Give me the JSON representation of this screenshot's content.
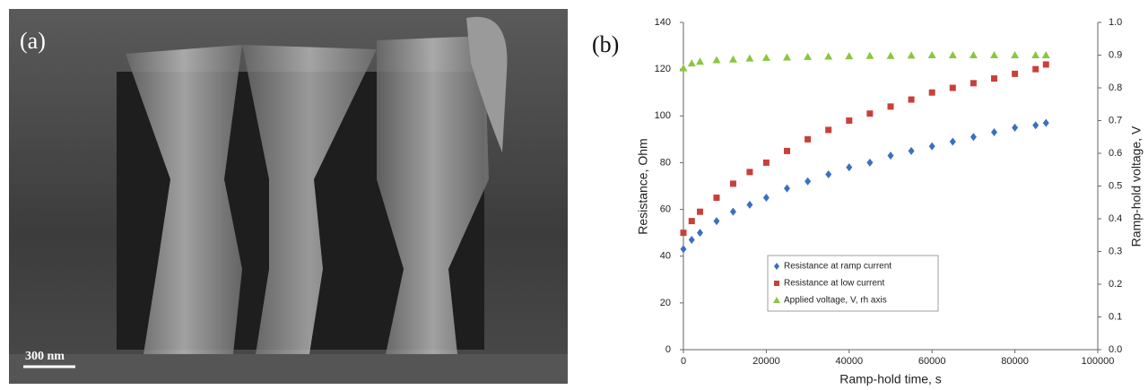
{
  "image": {
    "label": "(a)",
    "scale_bar": "300 nm"
  },
  "chart_data": {
    "type": "scatter",
    "panel_label": "(b)",
    "x_label": "Ramp-hold time, s",
    "y_label": "Resistance, Ohm",
    "y2_label": "Ramp-hold voltage, V",
    "x": [
      0,
      2000,
      4000,
      8000,
      12000,
      16000,
      20000,
      25000,
      30000,
      35000,
      40000,
      45000,
      50000,
      55000,
      60000,
      65000,
      70000,
      75000,
      80000,
      85000,
      87500
    ],
    "series": [
      {
        "name": "Resistance at ramp current",
        "color": "#3a6fc4",
        "marker": "diamond",
        "values": [
          43,
          47,
          50,
          55,
          59,
          62,
          65,
          69,
          72,
          75,
          78,
          80,
          83,
          85,
          87,
          89,
          91,
          93,
          95,
          96,
          97
        ]
      },
      {
        "name": "Resistance at low current",
        "color": "#c9403b",
        "marker": "square",
        "values": [
          50,
          55,
          59,
          65,
          71,
          76,
          80,
          85,
          90,
          94,
          98,
          101,
          104,
          107,
          110,
          112,
          114,
          116,
          118,
          120,
          122
        ]
      },
      {
        "name": "Applied voltage, V, rh axis",
        "color": "#8cc63f",
        "marker": "triangle",
        "axis": "y2",
        "values": [
          0.86,
          0.875,
          0.88,
          0.885,
          0.887,
          0.89,
          0.892,
          0.893,
          0.895,
          0.896,
          0.897,
          0.898,
          0.898,
          0.899,
          0.9,
          0.9,
          0.9,
          0.9,
          0.9,
          0.9,
          0.9
        ]
      }
    ],
    "xlim": [
      0,
      100000
    ],
    "xticks": [
      0,
      20000,
      40000,
      60000,
      80000,
      100000
    ],
    "ylim": [
      0,
      140
    ],
    "yticks": [
      0,
      20,
      40,
      60,
      80,
      100,
      120,
      140
    ],
    "y2lim": [
      0,
      1
    ],
    "y2ticks": [
      {
        "value": 0,
        "label": "0.0"
      },
      0.1,
      0.2,
      0.3,
      0.4,
      0.5,
      0.6,
      0.7,
      0.8,
      0.9,
      {
        "value": 1,
        "label": "1.0"
      }
    ],
    "grid": false
  }
}
